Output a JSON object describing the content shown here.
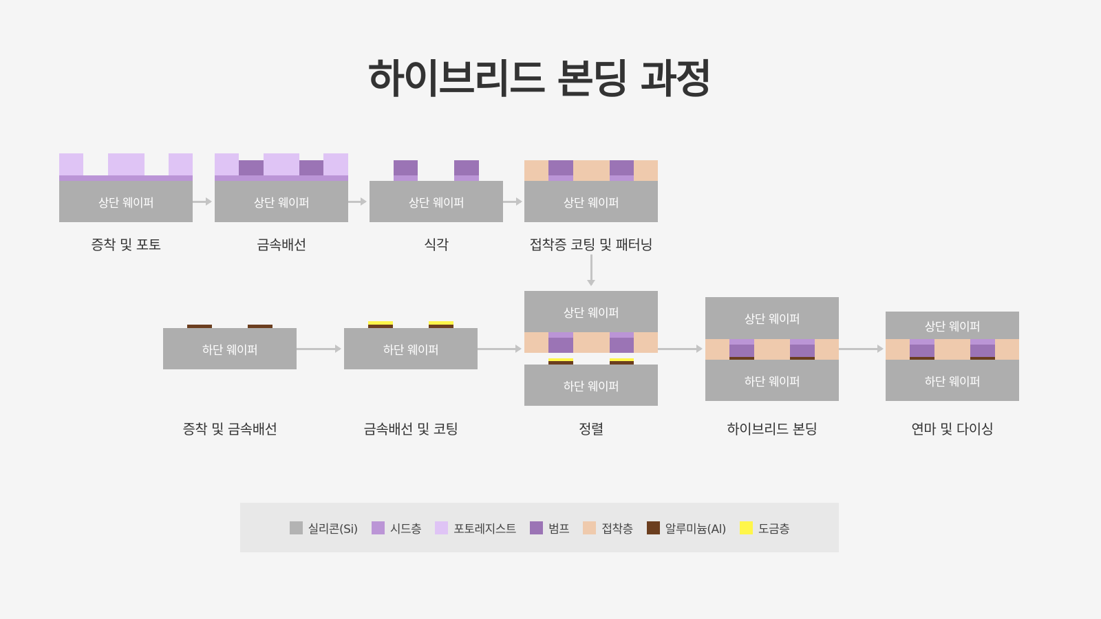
{
  "title": "하이브리드 본딩 과정",
  "wafer": {
    "top": "상단 웨이퍼",
    "bottom": "하단 웨이퍼"
  },
  "steps": [
    "증착 및 포토",
    "금속배선",
    "식각",
    "접착증 코팅 및 패터닝",
    "증착 및 금속배선",
    "금속배선 및 코팅",
    "정렬",
    "하이브리드 본딩",
    "연마 및 다이싱"
  ],
  "legend": [
    {
      "label": "실리콘(Si)",
      "color": "#aeaeae"
    },
    {
      "label": "시드층",
      "color": "#bb95d6"
    },
    {
      "label": "포토레지스트",
      "color": "#dfc4f5"
    },
    {
      "label": "범프",
      "color": "#9b74b5"
    },
    {
      "label": "접착층",
      "color": "#efcaad"
    },
    {
      "label": "알루미늄(Al)",
      "color": "#6b3e1f"
    },
    {
      "label": "도금층",
      "color": "#fff64a"
    }
  ]
}
